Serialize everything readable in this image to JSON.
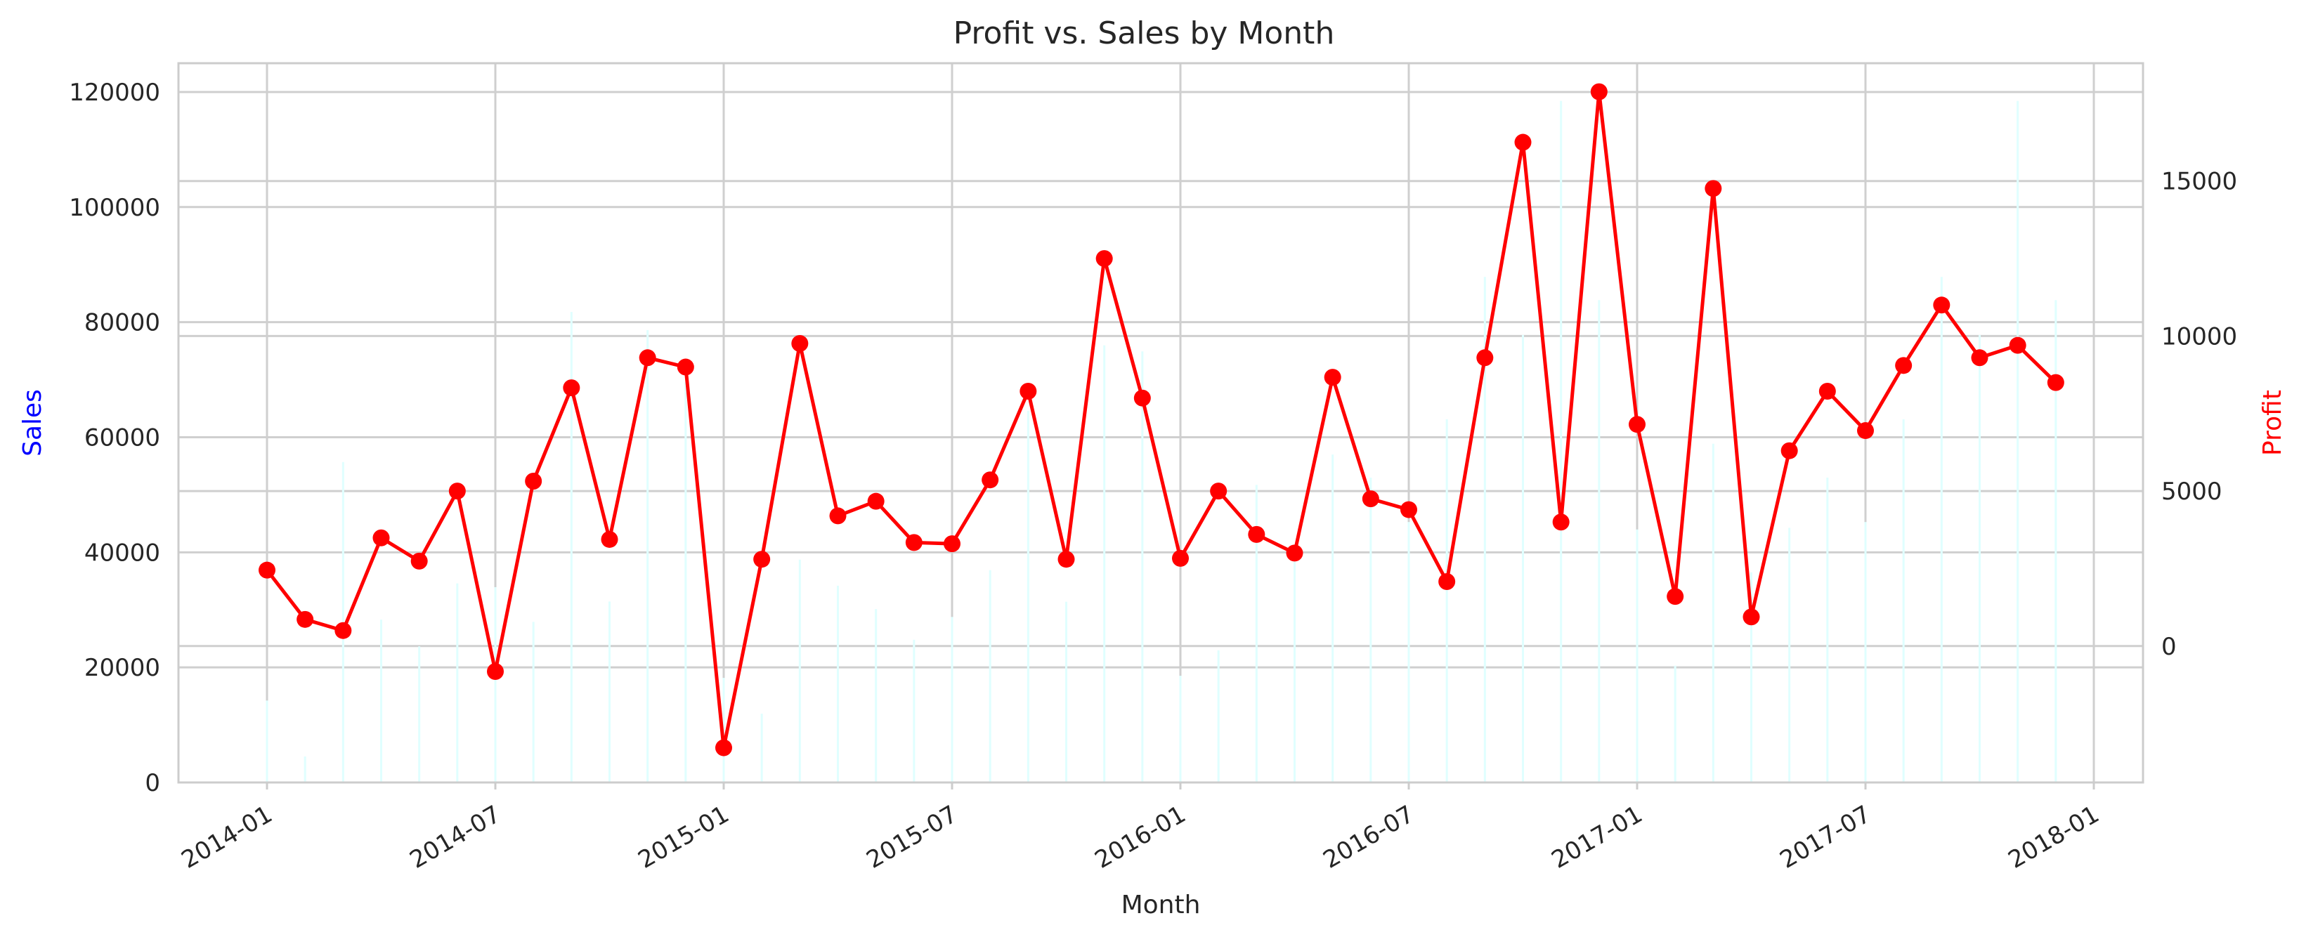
{
  "chart_data": {
    "type": "bar+line",
    "title": "Profit vs. Sales by Month",
    "xlabel": "Month",
    "ylabel_left": "Sales",
    "ylabel_right": "Profit",
    "ylabel_left_color": "#0000ff",
    "ylabel_right_color": "#ff0000",
    "x": [
      "2014-01",
      "2014-02",
      "2014-03",
      "2014-04",
      "2014-05",
      "2014-06",
      "2014-07",
      "2014-08",
      "2014-09",
      "2014-10",
      "2014-11",
      "2014-12",
      "2015-01",
      "2015-02",
      "2015-03",
      "2015-04",
      "2015-05",
      "2015-06",
      "2015-07",
      "2015-08",
      "2015-09",
      "2015-10",
      "2015-11",
      "2015-12",
      "2016-01",
      "2016-02",
      "2016-03",
      "2016-04",
      "2016-05",
      "2016-06",
      "2016-07",
      "2016-08",
      "2016-09",
      "2016-10",
      "2016-11",
      "2016-12",
      "2017-01",
      "2017-02",
      "2017-03",
      "2017-04",
      "2017-05",
      "2017-06",
      "2017-07",
      "2017-08",
      "2017-09",
      "2017-10",
      "2017-11",
      "2017-12"
    ],
    "x_ticks": [
      "2014-01",
      "2014-07",
      "2015-01",
      "2015-07",
      "2016-01",
      "2016-07",
      "2017-01",
      "2017-07",
      "2018-01"
    ],
    "series": [
      {
        "name": "Sales",
        "type": "bar",
        "axis": "left",
        "color": "#e0ffff",
        "values": [
          14237,
          4520,
          55691,
          28295,
          23648,
          34595,
          33946,
          27909,
          81777,
          31453,
          78628,
          69546,
          18174,
          11951,
          38726,
          34195,
          30132,
          24797,
          28765,
          36898,
          64596,
          31405,
          75973,
          74920,
          18542,
          22979,
          51716,
          38750,
          56988,
          52982,
          45264,
          63121,
          87867,
          77777,
          118448,
          83829,
          43971,
          20301,
          58872,
          36522,
          44261,
          52981,
          45264,
          63121,
          87867,
          77777,
          118448,
          83829
        ]
      },
      {
        "name": "Profit",
        "type": "line",
        "axis": "right",
        "color": "#ff0000",
        "values": [
          2450,
          860,
          500,
          3490,
          2740,
          5000,
          -820,
          5320,
          8330,
          3440,
          9300,
          9000,
          -3280,
          2800,
          9760,
          4200,
          4670,
          3340,
          3300,
          5360,
          8220,
          2800,
          12500,
          8000,
          2830,
          5000,
          3600,
          3000,
          8670,
          4750,
          4400,
          2080,
          9300,
          16250,
          4000,
          17880,
          7150,
          1600,
          14760,
          940,
          6300,
          8220,
          6950,
          9050,
          11000,
          9300,
          9700,
          8500
        ]
      }
    ],
    "ylim_left": [
      0,
      125000
    ],
    "yticks_left": [
      0,
      20000,
      40000,
      60000,
      80000,
      100000,
      120000
    ],
    "ylim_right": [
      -4400,
      18800
    ],
    "yticks_right": [
      0,
      5000,
      10000,
      15000
    ],
    "grid": true
  }
}
